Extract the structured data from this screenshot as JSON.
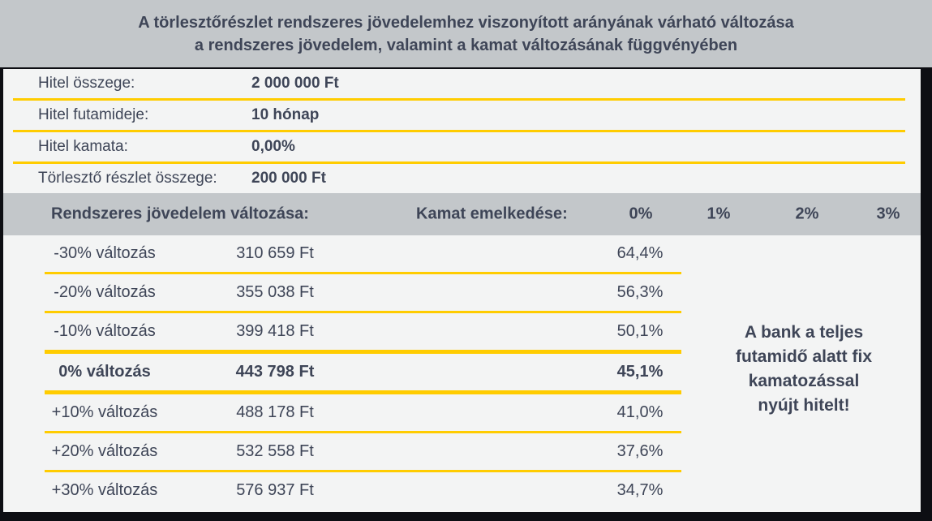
{
  "title": {
    "line1": "A törlesztőrészlet rendszeres jövedelemhez viszonyított arányának várható változása",
    "line2": "a rendszeres jövedelem, valamint a kamat változásának függvényében"
  },
  "loan_details": [
    {
      "label": "Hitel összege:",
      "value": "2 000 000 Ft"
    },
    {
      "label": "Hitel futamideje:",
      "value": "10 hónap"
    },
    {
      "label": "Hitel kamata:",
      "value": "0,00%"
    },
    {
      "label": "Törlesztő részlet összege:",
      "value": "200 000 Ft"
    }
  ],
  "table": {
    "header": {
      "income_label": "Rendszeres jövedelem változása:",
      "rate_label": "Kamat emelkedése:",
      "rate_columns": [
        "0%",
        "1%",
        "2%",
        "3%"
      ]
    },
    "rows": [
      {
        "change": "-30% változás",
        "income": "310 659 Ft",
        "ratio_0": "64,4%"
      },
      {
        "change": "-20% változás",
        "income": "355 038 Ft",
        "ratio_0": "56,3%"
      },
      {
        "change": "-10% változás",
        "income": "399 418 Ft",
        "ratio_0": "50,1%"
      },
      {
        "change": "0% változás",
        "income": "443 798 Ft",
        "ratio_0": "45,1%"
      },
      {
        "change": "+10% változás",
        "income": "488 178 Ft",
        "ratio_0": "41,0%"
      },
      {
        "change": "+20% változás",
        "income": "532 558 Ft",
        "ratio_0": "37,6%"
      },
      {
        "change": "+30% változás",
        "income": "576 937 Ft",
        "ratio_0": "34,7%"
      }
    ],
    "note_lines": [
      "A bank a teljes",
      "futamidő alatt fix",
      "kamatozással",
      "nyújt hitelt!"
    ]
  },
  "colors": {
    "accent_yellow": "#ffcc00",
    "header_gray": "#c3c7ca",
    "text_navy": "#3e4557",
    "panel_bg": "#f3f4f4",
    "frame_dark": "#0d0e13"
  }
}
